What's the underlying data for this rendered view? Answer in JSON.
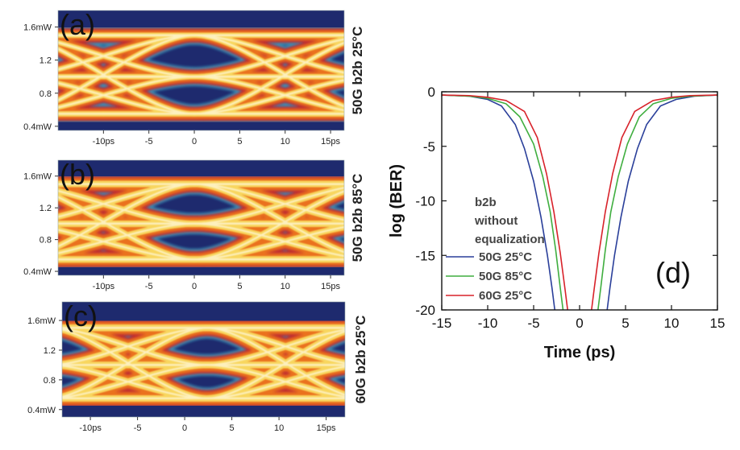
{
  "colors": {
    "eye_background": "#1e2a6e",
    "eye_blue": "#1e2a6e",
    "eye_cyan": "#3fa8c8",
    "eye_red": "#c4202a",
    "eye_orange": "#f07a1a",
    "eye_yellow": "#fbe86a",
    "eye_white": "#fffbe6",
    "ber_50g_25c": "#2a3f9a",
    "ber_50g_85c": "#3fae3f",
    "ber_60g_25c": "#d8222a"
  },
  "chart_data": [
    {
      "panel": "(a)",
      "type": "heatmap",
      "description_label": "50G b2b 25°C",
      "x_tick_labels": [
        "-10ps",
        "-5",
        "0",
        "5",
        "10",
        "15ps"
      ],
      "x_ticks": [
        -10,
        -5,
        0,
        5,
        10,
        15
      ],
      "xlim": [
        -15,
        16.5
      ],
      "y_tick_labels": [
        "1.6mW",
        "1.2",
        "0.8",
        "0.4mW"
      ],
      "y_ticks": [
        1.6,
        1.2,
        0.8,
        0.4
      ],
      "ylim": [
        0.35,
        1.8
      ],
      "symbol_period_ps": 20,
      "eye_crossings_ps": [
        -10,
        10
      ],
      "levels_mW": [
        0.55,
        1.0,
        1.5
      ],
      "eye_opening": 0.85
    },
    {
      "panel": "(b)",
      "type": "heatmap",
      "description_label": "50G b2b 85°C",
      "x_tick_labels": [
        "-10ps",
        "-5",
        "0",
        "5",
        "10",
        "15ps"
      ],
      "x_ticks": [
        -10,
        -5,
        0,
        5,
        10,
        15
      ],
      "xlim": [
        -15,
        16.5
      ],
      "y_tick_labels": [
        "1.6mW",
        "1.2",
        "0.8",
        "0.4mW"
      ],
      "y_ticks": [
        1.6,
        1.2,
        0.8,
        0.4
      ],
      "ylim": [
        0.35,
        1.8
      ],
      "symbol_period_ps": 20,
      "eye_crossings_ps": [
        -10,
        10
      ],
      "levels_mW": [
        0.55,
        1.0,
        1.5
      ],
      "eye_opening": 0.6
    },
    {
      "panel": "(c)",
      "type": "heatmap",
      "description_label": "60G b2b 25°C",
      "x_tick_labels": [
        "-10ps",
        "-5",
        "0",
        "5",
        "10",
        "15ps"
      ],
      "x_ticks": [
        -10,
        -5,
        0,
        5,
        10,
        15
      ],
      "xlim": [
        -13,
        17
      ],
      "y_tick_labels": [
        "1.6mW",
        "1.2",
        "0.8",
        "0.4mW"
      ],
      "y_ticks": [
        1.6,
        1.2,
        0.8,
        0.4
      ],
      "ylim": [
        0.3,
        1.85
      ],
      "symbol_period_ps": 16.7,
      "eye_crossings_ps": [
        -6,
        7.5
      ],
      "levels_mW": [
        0.55,
        1.0,
        1.5
      ],
      "eye_opening": 0.55
    },
    {
      "panel": "(d)",
      "type": "line",
      "title": "",
      "xlabel": "Time (ps)",
      "ylabel": "log (BER)",
      "xlim": [
        -15,
        15
      ],
      "ylim": [
        -20,
        0
      ],
      "x_ticks": [
        -15,
        -10,
        -5,
        0,
        5,
        10,
        15
      ],
      "y_ticks": [
        0,
        -5,
        -10,
        -15,
        -20
      ],
      "x_tick_labels": [
        "-15",
        "-10",
        "-5",
        "0",
        "5",
        "10",
        "15"
      ],
      "y_tick_labels": [
        "0",
        "-5",
        "-10",
        "-15",
        "-20"
      ],
      "legend_title": [
        "b2b",
        "without",
        "equalization"
      ],
      "legend_placement": "left",
      "series": [
        {
          "name": "50G 25°C",
          "color": "#2a3f9a",
          "left": [
            [
              -15,
              -0.3
            ],
            [
              -12,
              -0.4
            ],
            [
              -10,
              -0.7
            ],
            [
              -8.5,
              -1.3
            ],
            [
              -7,
              -3
            ],
            [
              -6,
              -5.2
            ],
            [
              -5,
              -8.2
            ],
            [
              -4.2,
              -11.5
            ],
            [
              -3.5,
              -15
            ],
            [
              -3,
              -18
            ],
            [
              -2.7,
              -20
            ]
          ],
          "right": [
            [
              3,
              -20
            ],
            [
              3.3,
              -18
            ],
            [
              3.8,
              -15
            ],
            [
              4.5,
              -11.5
            ],
            [
              5.3,
              -8.2
            ],
            [
              6.3,
              -5.2
            ],
            [
              7.3,
              -3
            ],
            [
              8.8,
              -1.3
            ],
            [
              10.5,
              -0.7
            ],
            [
              12.5,
              -0.4
            ],
            [
              15,
              -0.3
            ]
          ]
        },
        {
          "name": "50G 85°C",
          "color": "#3fae3f",
          "left": [
            [
              -15,
              -0.3
            ],
            [
              -12,
              -0.4
            ],
            [
              -10,
              -0.6
            ],
            [
              -8,
              -1.1
            ],
            [
              -6.5,
              -2.3
            ],
            [
              -5,
              -4.8
            ],
            [
              -4,
              -7.8
            ],
            [
              -3.2,
              -11
            ],
            [
              -2.6,
              -14.5
            ],
            [
              -2.1,
              -18
            ],
            [
              -1.8,
              -20
            ]
          ],
          "right": [
            [
              2,
              -20
            ],
            [
              2.3,
              -18
            ],
            [
              2.8,
              -14.5
            ],
            [
              3.4,
              -11
            ],
            [
              4.2,
              -7.8
            ],
            [
              5.2,
              -4.8
            ],
            [
              6.5,
              -2.3
            ],
            [
              8,
              -1.1
            ],
            [
              10,
              -0.6
            ],
            [
              12,
              -0.4
            ],
            [
              15,
              -0.3
            ]
          ]
        },
        {
          "name": "60G 25°C",
          "color": "#d8222a",
          "left": [
            [
              -15,
              -0.3
            ],
            [
              -12,
              -0.35
            ],
            [
              -10,
              -0.5
            ],
            [
              -8,
              -0.8
            ],
            [
              -6,
              -1.8
            ],
            [
              -4.6,
              -4.2
            ],
            [
              -3.6,
              -7.5
            ],
            [
              -2.8,
              -11
            ],
            [
              -2.1,
              -14.8
            ],
            [
              -1.6,
              -18
            ],
            [
              -1.3,
              -20
            ]
          ],
          "right": [
            [
              1.3,
              -20
            ],
            [
              1.6,
              -18
            ],
            [
              2.1,
              -14.8
            ],
            [
              2.8,
              -11
            ],
            [
              3.6,
              -7.5
            ],
            [
              4.6,
              -4.2
            ],
            [
              6,
              -1.8
            ],
            [
              8,
              -0.8
            ],
            [
              10,
              -0.5
            ],
            [
              12,
              -0.35
            ],
            [
              15,
              -0.3
            ]
          ]
        }
      ],
      "annotation": "(d)"
    }
  ]
}
